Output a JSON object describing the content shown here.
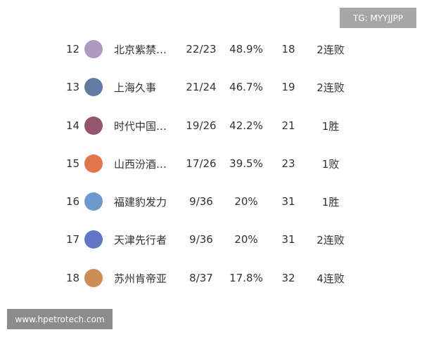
{
  "watermarks": {
    "top": "TG: MYYJJPP",
    "bottom": "www.hpetrotech.com"
  },
  "rows": [
    {
      "rank": "12",
      "name": "北京紫禁…",
      "record": "22/23",
      "pct": "48.9%",
      "gb": "18",
      "streak": "2连败",
      "logo_color": "#9b7fb0"
    },
    {
      "rank": "13",
      "name": "上海久事",
      "record": "21/24",
      "pct": "46.7%",
      "gb": "19",
      "streak": "2连败",
      "logo_color": "#3a5a8c"
    },
    {
      "rank": "14",
      "name": "时代中国…",
      "record": "19/26",
      "pct": "42.2%",
      "gb": "21",
      "streak": "1胜",
      "logo_color": "#7a2a4a"
    },
    {
      "rank": "15",
      "name": "山西汾酒…",
      "record": "17/26",
      "pct": "39.5%",
      "gb": "23",
      "streak": "1败",
      "logo_color": "#d9531e"
    },
    {
      "rank": "16",
      "name": "福建豹发力",
      "record": "9/36",
      "pct": "20%",
      "gb": "31",
      "streak": "1胜",
      "logo_color": "#4a7fc0"
    },
    {
      "rank": "17",
      "name": "天津先行者",
      "record": "9/36",
      "pct": "20%",
      "gb": "31",
      "streak": "2连败",
      "logo_color": "#3b55b5"
    },
    {
      "rank": "18",
      "name": "苏州肯帝亚",
      "record": "8/37",
      "pct": "17.8%",
      "gb": "32",
      "streak": "4连败",
      "logo_color": "#c0702a"
    }
  ]
}
